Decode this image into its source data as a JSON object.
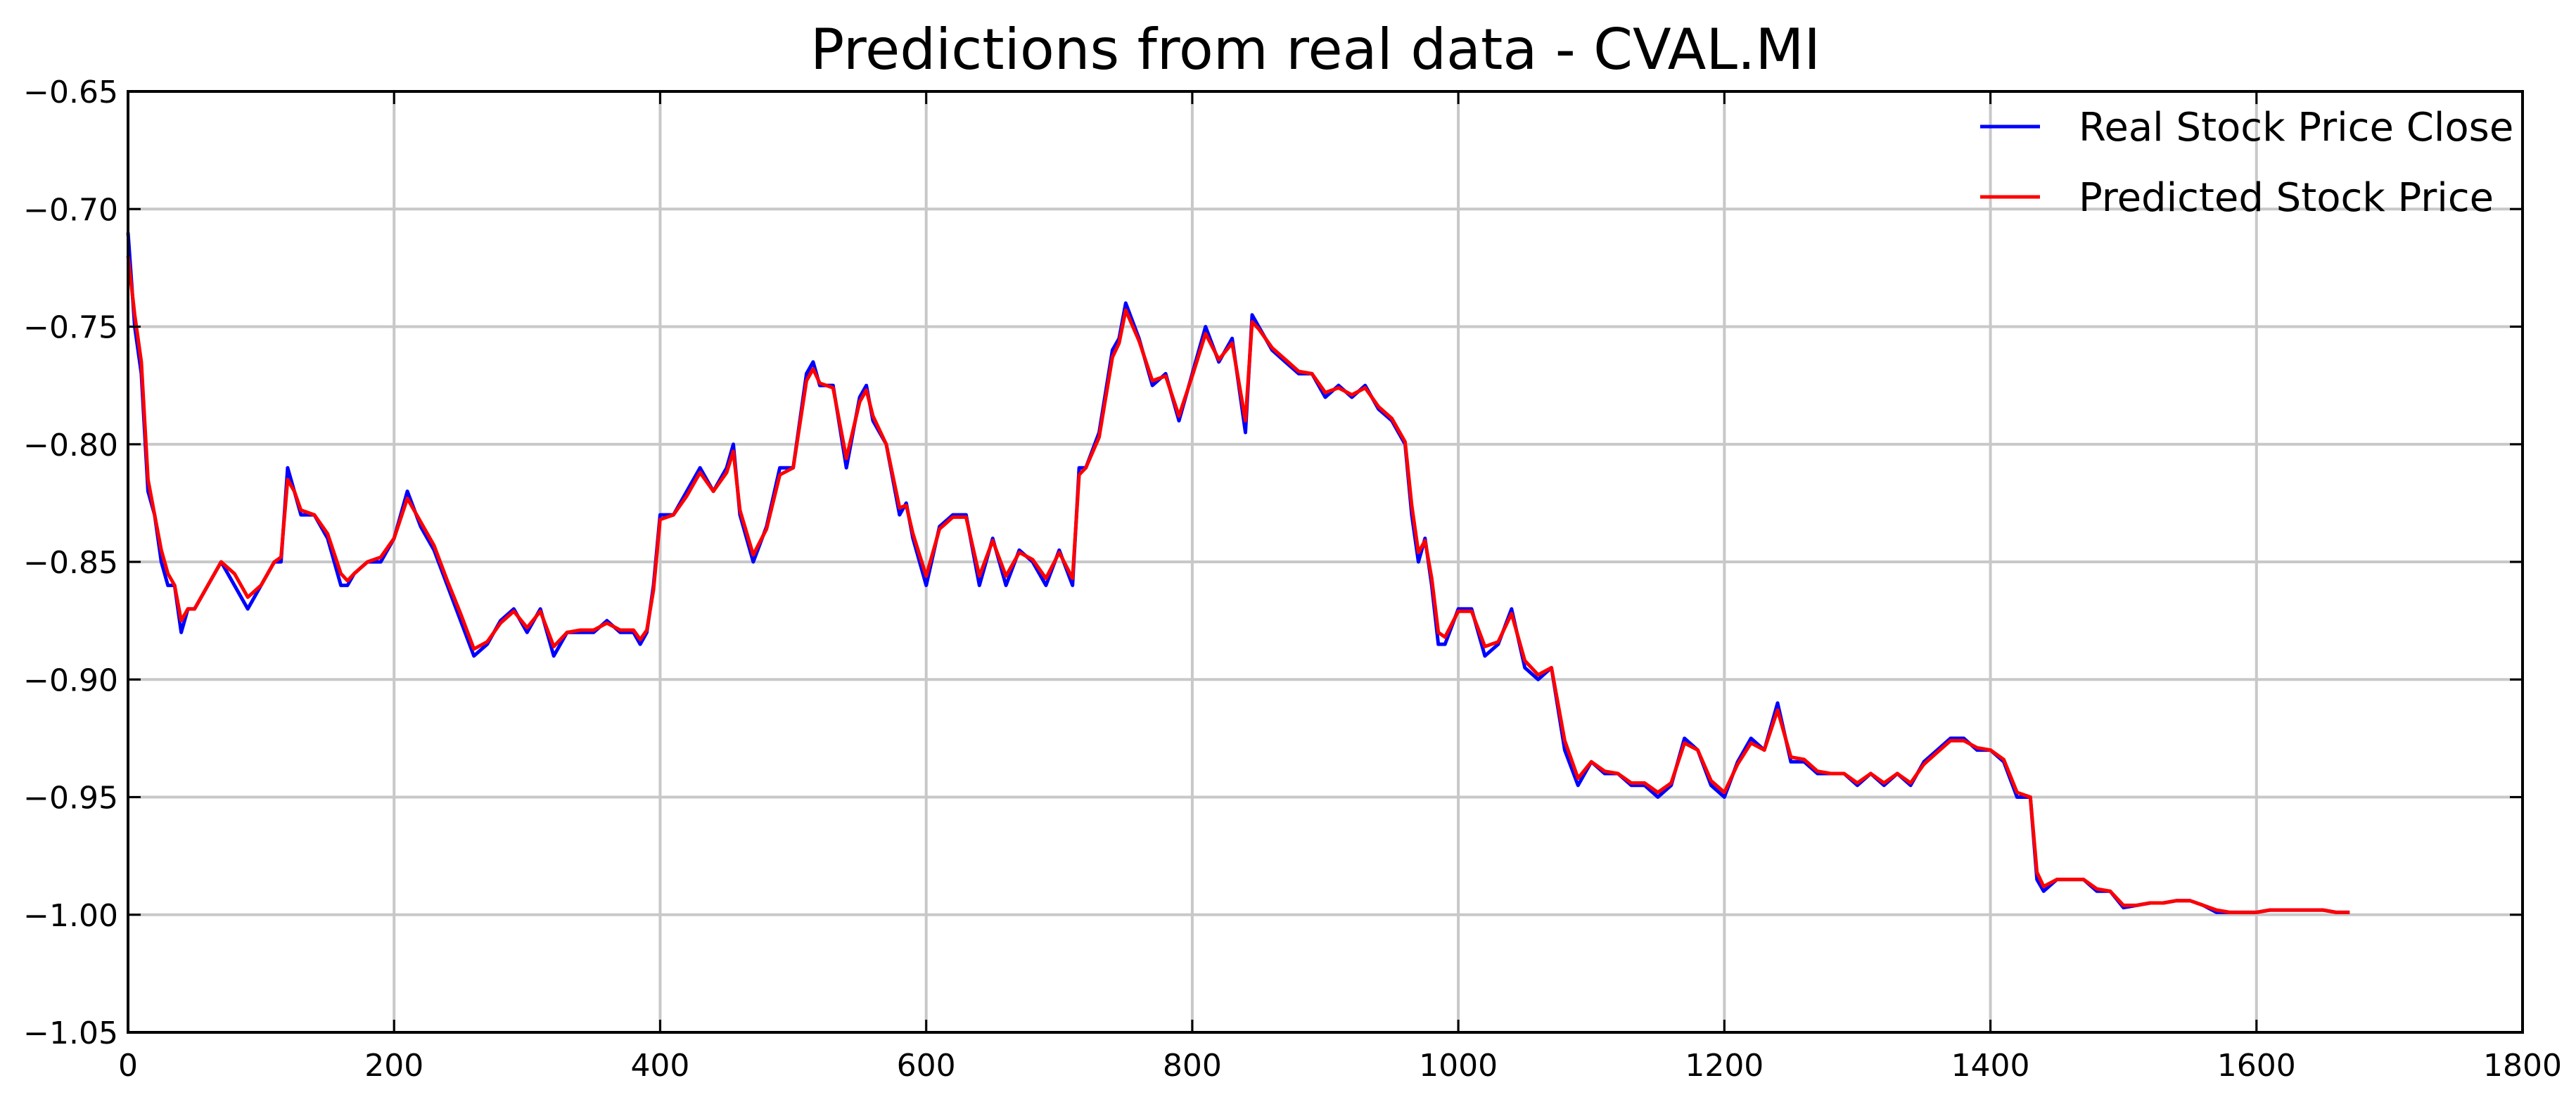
{
  "chart_data": {
    "type": "line",
    "title": "Predictions from real data - CVAL.MI",
    "xlabel": "",
    "ylabel": "",
    "xlim": [
      0,
      1800
    ],
    "ylim": [
      -1.05,
      -0.65
    ],
    "xticks": [
      0,
      200,
      400,
      600,
      800,
      1000,
      1200,
      1400,
      1600,
      1800
    ],
    "xtick_labels": [
      "0",
      "200",
      "400",
      "600",
      "800",
      "1000",
      "1200",
      "1400",
      "1600",
      "1800"
    ],
    "yticks": [
      -0.65,
      -0.7,
      -0.75,
      -0.8,
      -0.85,
      -0.9,
      -0.95,
      -1.0,
      -1.05
    ],
    "ytick_labels": [
      "−0.65",
      "−0.70",
      "−0.75",
      "−0.80",
      "−0.85",
      "−0.90",
      "−0.95",
      "−1.00",
      "−1.05"
    ],
    "grid": true,
    "legend_position": "top-right",
    "series": [
      {
        "name": "Real Stock Price Close",
        "color": "#0000ff",
        "x": [
          0,
          5,
          10,
          15,
          20,
          25,
          30,
          35,
          40,
          45,
          50,
          60,
          70,
          80,
          90,
          100,
          110,
          115,
          120,
          125,
          130,
          140,
          150,
          160,
          165,
          170,
          180,
          190,
          200,
          210,
          220,
          230,
          240,
          250,
          260,
          270,
          280,
          290,
          300,
          310,
          320,
          330,
          340,
          350,
          360,
          370,
          380,
          385,
          390,
          395,
          400,
          410,
          420,
          430,
          440,
          450,
          455,
          460,
          470,
          480,
          490,
          500,
          510,
          515,
          520,
          530,
          540,
          550,
          555,
          560,
          570,
          580,
          585,
          590,
          600,
          610,
          620,
          630,
          640,
          650,
          660,
          670,
          680,
          690,
          700,
          710,
          715,
          720,
          730,
          740,
          745,
          750,
          760,
          770,
          780,
          790,
          800,
          810,
          820,
          830,
          840,
          845,
          850,
          860,
          870,
          880,
          890,
          900,
          910,
          920,
          930,
          940,
          950,
          960,
          965,
          970,
          975,
          980,
          985,
          990,
          1000,
          1010,
          1020,
          1030,
          1040,
          1050,
          1060,
          1070,
          1080,
          1090,
          1100,
          1110,
          1120,
          1130,
          1140,
          1150,
          1160,
          1170,
          1180,
          1190,
          1200,
          1210,
          1220,
          1230,
          1240,
          1250,
          1260,
          1270,
          1280,
          1290,
          1300,
          1310,
          1320,
          1330,
          1340,
          1350,
          1360,
          1370,
          1380,
          1390,
          1400,
          1410,
          1420,
          1430,
          1435,
          1440,
          1450,
          1460,
          1470,
          1480,
          1490,
          1500,
          1510,
          1520,
          1530,
          1540,
          1550,
          1560,
          1570,
          1580,
          1590,
          1600,
          1610,
          1620,
          1630,
          1640,
          1650,
          1660,
          1670
        ],
        "y": [
          -0.71,
          -0.75,
          -0.77,
          -0.82,
          -0.83,
          -0.85,
          -0.86,
          -0.86,
          -0.88,
          -0.87,
          -0.87,
          -0.86,
          -0.85,
          -0.86,
          -0.87,
          -0.86,
          -0.85,
          -0.85,
          -0.81,
          -0.82,
          -0.83,
          -0.83,
          -0.84,
          -0.86,
          -0.86,
          -0.855,
          -0.85,
          -0.85,
          -0.84,
          -0.82,
          -0.835,
          -0.845,
          -0.86,
          -0.875,
          -0.89,
          -0.885,
          -0.875,
          -0.87,
          -0.88,
          -0.87,
          -0.89,
          -0.88,
          -0.88,
          -0.88,
          -0.875,
          -0.88,
          -0.88,
          -0.885,
          -0.88,
          -0.86,
          -0.83,
          -0.83,
          -0.82,
          -0.81,
          -0.82,
          -0.81,
          -0.8,
          -0.83,
          -0.85,
          -0.835,
          -0.81,
          -0.81,
          -0.77,
          -0.765,
          -0.775,
          -0.775,
          -0.81,
          -0.78,
          -0.775,
          -0.79,
          -0.8,
          -0.83,
          -0.825,
          -0.84,
          -0.86,
          -0.835,
          -0.83,
          -0.83,
          -0.86,
          -0.84,
          -0.86,
          -0.845,
          -0.85,
          -0.86,
          -0.845,
          -0.86,
          -0.81,
          -0.81,
          -0.795,
          -0.76,
          -0.755,
          -0.74,
          -0.755,
          -0.775,
          -0.77,
          -0.79,
          -0.77,
          -0.75,
          -0.765,
          -0.755,
          -0.795,
          -0.745,
          -0.75,
          -0.76,
          -0.765,
          -0.77,
          -0.77,
          -0.78,
          -0.775,
          -0.78,
          -0.775,
          -0.785,
          -0.79,
          -0.8,
          -0.83,
          -0.85,
          -0.84,
          -0.86,
          -0.885,
          -0.885,
          -0.87,
          -0.87,
          -0.89,
          -0.885,
          -0.87,
          -0.895,
          -0.9,
          -0.895,
          -0.93,
          -0.945,
          -0.935,
          -0.94,
          -0.94,
          -0.945,
          -0.945,
          -0.95,
          -0.945,
          -0.925,
          -0.93,
          -0.945,
          -0.95,
          -0.935,
          -0.925,
          -0.93,
          -0.91,
          -0.935,
          -0.935,
          -0.94,
          -0.94,
          -0.94,
          -0.945,
          -0.94,
          -0.945,
          -0.94,
          -0.945,
          -0.935,
          -0.93,
          -0.925,
          -0.925,
          -0.93,
          -0.93,
          -0.935,
          -0.95,
          -0.95,
          -0.985,
          -0.99,
          -0.985,
          -0.985,
          -0.985,
          -0.99,
          -0.99,
          -0.997,
          -0.996,
          -0.995,
          -0.995,
          -0.994,
          -0.994,
          -0.996,
          -0.999,
          -0.999,
          -0.999,
          -0.999,
          -0.998,
          -0.998,
          -0.998,
          -0.998,
          -0.998,
          -0.999,
          -0.999
        ]
      },
      {
        "name": "Predicted Stock Price",
        "color": "#ff0000",
        "x": [
          0,
          5,
          10,
          15,
          20,
          25,
          30,
          35,
          40,
          45,
          50,
          60,
          70,
          80,
          90,
          100,
          110,
          115,
          120,
          125,
          130,
          140,
          150,
          160,
          165,
          170,
          180,
          190,
          200,
          210,
          220,
          230,
          240,
          250,
          260,
          270,
          280,
          290,
          300,
          310,
          320,
          330,
          340,
          350,
          360,
          370,
          380,
          385,
          390,
          395,
          400,
          410,
          420,
          430,
          440,
          450,
          455,
          460,
          470,
          480,
          490,
          500,
          510,
          515,
          520,
          530,
          540,
          550,
          555,
          560,
          570,
          580,
          585,
          590,
          600,
          610,
          620,
          630,
          640,
          650,
          660,
          670,
          680,
          690,
          700,
          710,
          715,
          720,
          730,
          740,
          745,
          750,
          760,
          770,
          780,
          790,
          800,
          810,
          820,
          830,
          840,
          845,
          850,
          860,
          870,
          880,
          890,
          900,
          910,
          920,
          930,
          940,
          950,
          960,
          965,
          970,
          975,
          980,
          985,
          990,
          1000,
          1010,
          1020,
          1030,
          1040,
          1050,
          1060,
          1070,
          1080,
          1090,
          1100,
          1110,
          1120,
          1130,
          1140,
          1150,
          1160,
          1170,
          1180,
          1190,
          1200,
          1210,
          1220,
          1230,
          1240,
          1250,
          1260,
          1270,
          1280,
          1290,
          1300,
          1310,
          1320,
          1330,
          1340,
          1350,
          1360,
          1370,
          1380,
          1390,
          1400,
          1410,
          1420,
          1430,
          1435,
          1440,
          1450,
          1460,
          1470,
          1480,
          1490,
          1500,
          1510,
          1520,
          1530,
          1540,
          1550,
          1560,
          1570,
          1580,
          1590,
          1600,
          1610,
          1620,
          1630,
          1640,
          1650,
          1660,
          1670
        ],
        "y": [
          -0.72,
          -0.745,
          -0.765,
          -0.815,
          -0.83,
          -0.845,
          -0.855,
          -0.86,
          -0.875,
          -0.87,
          -0.87,
          -0.86,
          -0.85,
          -0.855,
          -0.865,
          -0.86,
          -0.85,
          -0.848,
          -0.815,
          -0.82,
          -0.828,
          -0.83,
          -0.838,
          -0.855,
          -0.858,
          -0.855,
          -0.85,
          -0.848,
          -0.84,
          -0.823,
          -0.833,
          -0.843,
          -0.858,
          -0.872,
          -0.887,
          -0.884,
          -0.876,
          -0.871,
          -0.878,
          -0.871,
          -0.886,
          -0.88,
          -0.879,
          -0.879,
          -0.876,
          -0.879,
          -0.879,
          -0.883,
          -0.879,
          -0.862,
          -0.832,
          -0.83,
          -0.822,
          -0.812,
          -0.82,
          -0.812,
          -0.803,
          -0.828,
          -0.847,
          -0.836,
          -0.813,
          -0.81,
          -0.773,
          -0.768,
          -0.774,
          -0.776,
          -0.806,
          -0.782,
          -0.777,
          -0.788,
          -0.8,
          -0.827,
          -0.826,
          -0.838,
          -0.856,
          -0.836,
          -0.831,
          -0.831,
          -0.856,
          -0.841,
          -0.856,
          -0.846,
          -0.849,
          -0.857,
          -0.846,
          -0.857,
          -0.813,
          -0.81,
          -0.797,
          -0.763,
          -0.757,
          -0.743,
          -0.756,
          -0.773,
          -0.771,
          -0.788,
          -0.771,
          -0.753,
          -0.764,
          -0.757,
          -0.79,
          -0.748,
          -0.751,
          -0.759,
          -0.764,
          -0.769,
          -0.77,
          -0.778,
          -0.776,
          -0.779,
          -0.776,
          -0.784,
          -0.789,
          -0.799,
          -0.826,
          -0.846,
          -0.841,
          -0.857,
          -0.88,
          -0.882,
          -0.871,
          -0.871,
          -0.886,
          -0.884,
          -0.872,
          -0.892,
          -0.898,
          -0.895,
          -0.926,
          -0.942,
          -0.935,
          -0.939,
          -0.94,
          -0.944,
          -0.944,
          -0.948,
          -0.944,
          -0.927,
          -0.93,
          -0.943,
          -0.948,
          -0.936,
          -0.927,
          -0.93,
          -0.913,
          -0.933,
          -0.934,
          -0.939,
          -0.94,
          -0.94,
          -0.944,
          -0.94,
          -0.944,
          -0.94,
          -0.944,
          -0.936,
          -0.931,
          -0.926,
          -0.926,
          -0.929,
          -0.93,
          -0.934,
          -0.948,
          -0.95,
          -0.982,
          -0.988,
          -0.985,
          -0.985,
          -0.985,
          -0.989,
          -0.99,
          -0.996,
          -0.996,
          -0.995,
          -0.995,
          -0.994,
          -0.994,
          -0.996,
          -0.998,
          -0.999,
          -0.999,
          -0.999,
          -0.998,
          -0.998,
          -0.998,
          -0.998,
          -0.998,
          -0.999,
          -0.999
        ]
      }
    ]
  }
}
